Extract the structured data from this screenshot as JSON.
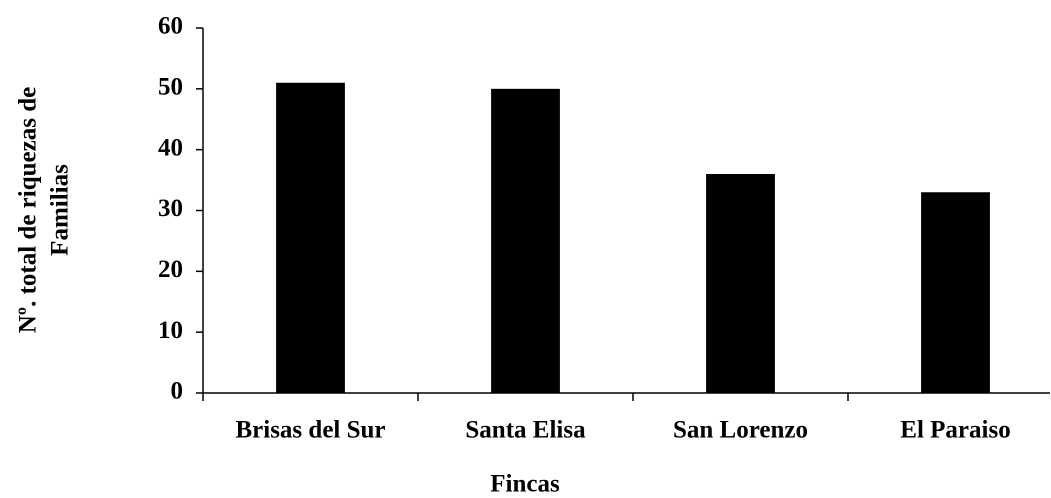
{
  "chart_data": {
    "type": "bar",
    "categories": [
      "Brisas del Sur",
      "Santa Elisa",
      "San Lorenzo",
      "El Paraiso"
    ],
    "values": [
      51,
      50,
      36,
      33
    ],
    "color": "#000000",
    "ylim": [
      0,
      60
    ],
    "yticks": [
      0,
      10,
      20,
      30,
      40,
      50,
      60
    ],
    "xlabel": "Fincas",
    "ylabel": [
      "Nº. total de riquezas de",
      "Familias"
    ],
    "grid": false
  }
}
